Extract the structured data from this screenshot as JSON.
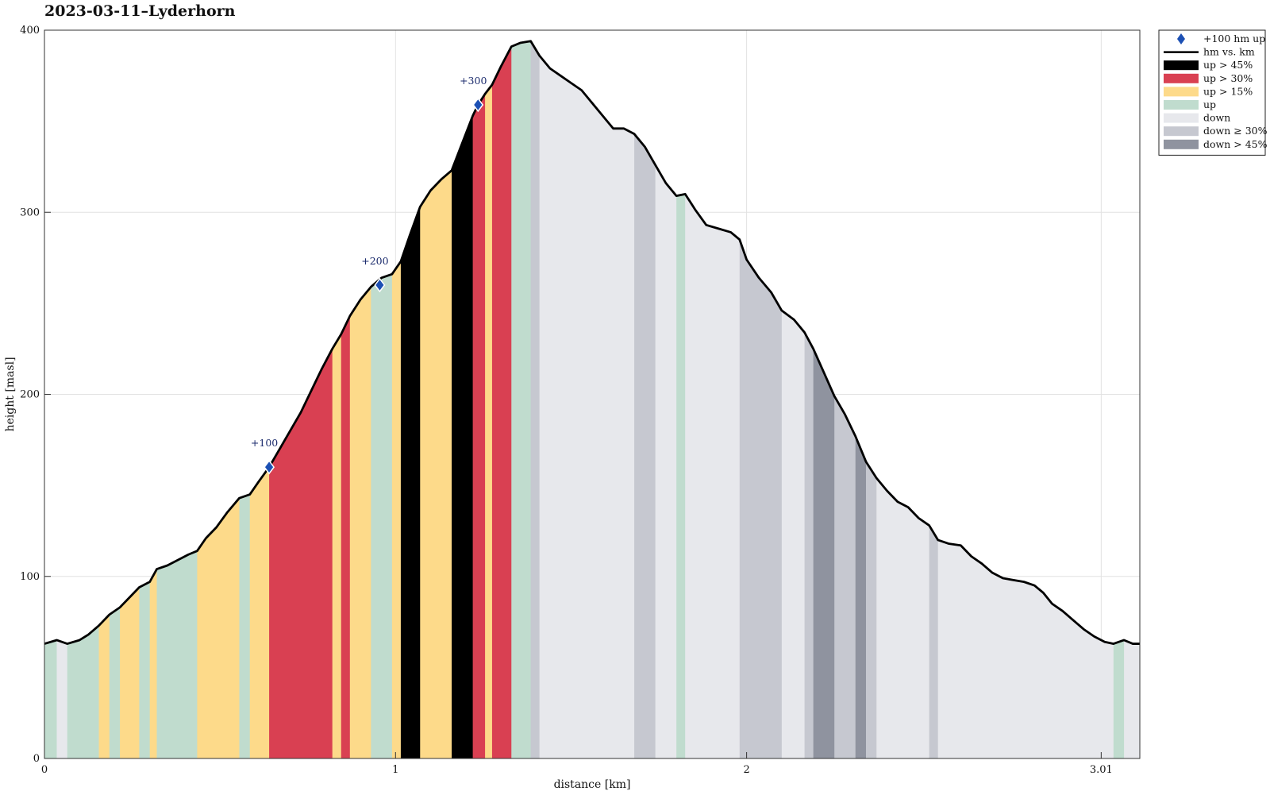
{
  "chart_data": {
    "type": "area",
    "title": "2023-03-11–Lyderhorn",
    "xlabel": "distance [km]",
    "ylabel": "height [masl]",
    "xlim": [
      0,
      3.01
    ],
    "ylim": [
      0,
      400
    ],
    "xticks": [
      {
        "value": 0,
        "label": "0"
      },
      {
        "value": 1,
        "label": "1"
      },
      {
        "value": 2,
        "label": "2"
      },
      {
        "value": 3.01,
        "label": "3.01"
      }
    ],
    "yticks": [
      {
        "value": 0,
        "label": "0"
      },
      {
        "value": 100,
        "label": "100"
      },
      {
        "value": 200,
        "label": "200"
      },
      {
        "value": 300,
        "label": "300"
      },
      {
        "value": 400,
        "label": "400"
      }
    ],
    "grid": true,
    "legend_position": "top-right",
    "categories": {
      "up45": {
        "label": "up > 45%",
        "color": "#000000"
      },
      "up30": {
        "label": "up > 30%",
        "color": "#d94052"
      },
      "up15": {
        "label": "up > 15%",
        "color": "#fdda8a"
      },
      "up": {
        "label": "up",
        "color": "#c0dcce"
      },
      "down": {
        "label": "down",
        "color": "#e7e8ec"
      },
      "down30": {
        "label": "down ≥ 30%",
        "color": "#c6c8d0"
      },
      "down45": {
        "label": "down > 45%",
        "color": "#8f939f"
      }
    },
    "legend": [
      {
        "key": "marker",
        "label": "+100 hm up",
        "color": "#1c50b4"
      },
      {
        "key": "line",
        "label": "hm vs. km",
        "color": "#000000"
      },
      {
        "key": "up45",
        "label": "up > 45%"
      },
      {
        "key": "up30",
        "label": "up > 30%"
      },
      {
        "key": "up15",
        "label": "up > 15%"
      },
      {
        "key": "up",
        "label": "up"
      },
      {
        "key": "down",
        "label": "down"
      },
      {
        "key": "down30",
        "label": "down ≥ 30%"
      },
      {
        "key": "down45",
        "label": "down > 45%"
      }
    ],
    "profile": [
      [
        0,
        63
      ],
      [
        0.035,
        65
      ],
      [
        0.065,
        63
      ],
      [
        0.1,
        65
      ],
      [
        0.125,
        68
      ],
      [
        0.155,
        73
      ],
      [
        0.185,
        79
      ],
      [
        0.215,
        83
      ],
      [
        0.245,
        89
      ],
      [
        0.27,
        94
      ],
      [
        0.3,
        97
      ],
      [
        0.32,
        104
      ],
      [
        0.35,
        106
      ],
      [
        0.38,
        109
      ],
      [
        0.41,
        112
      ],
      [
        0.435,
        114
      ],
      [
        0.46,
        121
      ],
      [
        0.49,
        127
      ],
      [
        0.52,
        135
      ],
      [
        0.555,
        143
      ],
      [
        0.585,
        145
      ],
      [
        0.61,
        152
      ],
      [
        0.64,
        160
      ],
      [
        0.67,
        170
      ],
      [
        0.7,
        180
      ],
      [
        0.73,
        190
      ],
      [
        0.76,
        202
      ],
      [
        0.79,
        214
      ],
      [
        0.82,
        225
      ],
      [
        0.845,
        233
      ],
      [
        0.87,
        243
      ],
      [
        0.9,
        252
      ],
      [
        0.93,
        259
      ],
      [
        0.96,
        264
      ],
      [
        0.99,
        266
      ],
      [
        1.015,
        273
      ],
      [
        1.04,
        287
      ],
      [
        1.07,
        303
      ],
      [
        1.1,
        312
      ],
      [
        1.13,
        318
      ],
      [
        1.16,
        323
      ],
      [
        1.19,
        338
      ],
      [
        1.22,
        353
      ],
      [
        1.235,
        359
      ],
      [
        1.255,
        365
      ],
      [
        1.275,
        370
      ],
      [
        1.3,
        380
      ],
      [
        1.33,
        391
      ],
      [
        1.355,
        393
      ],
      [
        1.385,
        394
      ],
      [
        1.41,
        386
      ],
      [
        1.44,
        379
      ],
      [
        1.47,
        375
      ],
      [
        1.5,
        371
      ],
      [
        1.53,
        367
      ],
      [
        1.56,
        360
      ],
      [
        1.59,
        353
      ],
      [
        1.62,
        346
      ],
      [
        1.65,
        346
      ],
      [
        1.68,
        343
      ],
      [
        1.71,
        336
      ],
      [
        1.74,
        326
      ],
      [
        1.77,
        316
      ],
      [
        1.8,
        309
      ],
      [
        1.825,
        310
      ],
      [
        1.855,
        301
      ],
      [
        1.885,
        293
      ],
      [
        1.92,
        291
      ],
      [
        1.955,
        289
      ],
      [
        1.98,
        285
      ],
      [
        2.0,
        274
      ],
      [
        2.035,
        264
      ],
      [
        2.07,
        256
      ],
      [
        2.1,
        246
      ],
      [
        2.135,
        241
      ],
      [
        2.165,
        234
      ],
      [
        2.19,
        225
      ],
      [
        2.22,
        212
      ],
      [
        2.25,
        199
      ],
      [
        2.28,
        189
      ],
      [
        2.31,
        177
      ],
      [
        2.34,
        163
      ],
      [
        2.37,
        154
      ],
      [
        2.4,
        147
      ],
      [
        2.43,
        141
      ],
      [
        2.46,
        138
      ],
      [
        2.49,
        132
      ],
      [
        2.52,
        128
      ],
      [
        2.545,
        120
      ],
      [
        2.575,
        118
      ],
      [
        2.61,
        117
      ],
      [
        2.64,
        111
      ],
      [
        2.67,
        107
      ],
      [
        2.7,
        102
      ],
      [
        2.73,
        99
      ],
      [
        2.76,
        98
      ],
      [
        2.79,
        97
      ],
      [
        2.82,
        95
      ],
      [
        2.845,
        91
      ],
      [
        2.87,
        85
      ],
      [
        2.9,
        81
      ],
      [
        2.93,
        76
      ],
      [
        2.96,
        71
      ],
      [
        2.99,
        67
      ],
      [
        3.02,
        64
      ],
      [
        3.045,
        63
      ],
      [
        3.075,
        65
      ],
      [
        3.1,
        63
      ],
      [
        3.12,
        63
      ]
    ],
    "segments": [
      {
        "x0": 0,
        "x1": 0.035,
        "cat": "up"
      },
      {
        "x0": 0.035,
        "x1": 0.065,
        "cat": "down"
      },
      {
        "x0": 0.065,
        "x1": 0.155,
        "cat": "up"
      },
      {
        "x0": 0.155,
        "x1": 0.185,
        "cat": "up15"
      },
      {
        "x0": 0.185,
        "x1": 0.215,
        "cat": "up"
      },
      {
        "x0": 0.215,
        "x1": 0.27,
        "cat": "up15"
      },
      {
        "x0": 0.27,
        "x1": 0.3,
        "cat": "up"
      },
      {
        "x0": 0.3,
        "x1": 0.32,
        "cat": "up15"
      },
      {
        "x0": 0.32,
        "x1": 0.435,
        "cat": "up"
      },
      {
        "x0": 0.435,
        "x1": 0.555,
        "cat": "up15"
      },
      {
        "x0": 0.555,
        "x1": 0.585,
        "cat": "up"
      },
      {
        "x0": 0.585,
        "x1": 0.64,
        "cat": "up15"
      },
      {
        "x0": 0.64,
        "x1": 0.82,
        "cat": "up30"
      },
      {
        "x0": 0.82,
        "x1": 0.845,
        "cat": "up15"
      },
      {
        "x0": 0.845,
        "x1": 0.87,
        "cat": "up30"
      },
      {
        "x0": 0.87,
        "x1": 0.93,
        "cat": "up15"
      },
      {
        "x0": 0.93,
        "x1": 0.99,
        "cat": "up"
      },
      {
        "x0": 0.99,
        "x1": 1.015,
        "cat": "up15"
      },
      {
        "x0": 1.015,
        "x1": 1.07,
        "cat": "up45"
      },
      {
        "x0": 1.07,
        "x1": 1.16,
        "cat": "up15"
      },
      {
        "x0": 1.16,
        "x1": 1.22,
        "cat": "up45"
      },
      {
        "x0": 1.22,
        "x1": 1.255,
        "cat": "up30"
      },
      {
        "x0": 1.255,
        "x1": 1.275,
        "cat": "up15"
      },
      {
        "x0": 1.275,
        "x1": 1.33,
        "cat": "up30"
      },
      {
        "x0": 1.33,
        "x1": 1.385,
        "cat": "up"
      },
      {
        "x0": 1.385,
        "x1": 1.41,
        "cat": "down30"
      },
      {
        "x0": 1.41,
        "x1": 1.68,
        "cat": "down"
      },
      {
        "x0": 1.68,
        "x1": 1.74,
        "cat": "down30"
      },
      {
        "x0": 1.74,
        "x1": 1.8,
        "cat": "down"
      },
      {
        "x0": 1.8,
        "x1": 1.825,
        "cat": "up"
      },
      {
        "x0": 1.825,
        "x1": 1.98,
        "cat": "down"
      },
      {
        "x0": 1.98,
        "x1": 2.1,
        "cat": "down30"
      },
      {
        "x0": 2.1,
        "x1": 2.165,
        "cat": "down"
      },
      {
        "x0": 2.165,
        "x1": 2.19,
        "cat": "down30"
      },
      {
        "x0": 2.19,
        "x1": 2.25,
        "cat": "down45"
      },
      {
        "x0": 2.25,
        "x1": 2.31,
        "cat": "down30"
      },
      {
        "x0": 2.31,
        "x1": 2.34,
        "cat": "down45"
      },
      {
        "x0": 2.34,
        "x1": 2.37,
        "cat": "down30"
      },
      {
        "x0": 2.37,
        "x1": 2.52,
        "cat": "down"
      },
      {
        "x0": 2.52,
        "x1": 2.545,
        "cat": "down30"
      },
      {
        "x0": 2.545,
        "x1": 3.045,
        "cat": "down"
      },
      {
        "x0": 3.045,
        "x1": 3.075,
        "cat": "up"
      },
      {
        "x0": 3.075,
        "x1": 3.12,
        "cat": "down"
      }
    ],
    "markers": [
      {
        "x": 0.64,
        "y": 160,
        "label": "+100"
      },
      {
        "x": 0.955,
        "y": 260,
        "label": "+200"
      },
      {
        "x": 1.235,
        "y": 359,
        "label": "+300"
      }
    ]
  }
}
